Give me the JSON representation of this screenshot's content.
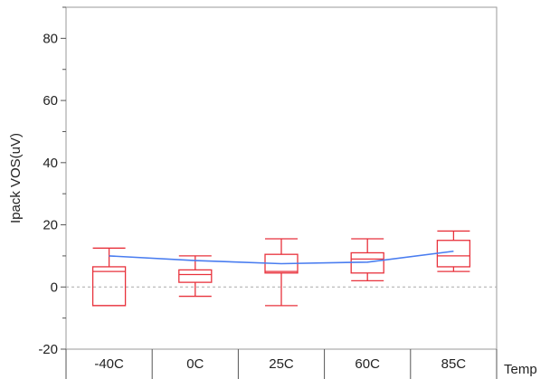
{
  "chart_data": {
    "type": "box",
    "categories": [
      "-40C",
      "0C",
      "25C",
      "60C",
      "85C"
    ],
    "xlabel": "Temp",
    "ylabel": "Ipack VOS(uV)",
    "ylim": [
      -20,
      90
    ],
    "yticks": [
      -20,
      0,
      20,
      40,
      60,
      80
    ],
    "grid": false,
    "reference_line": 0,
    "boxes": [
      {
        "category": "-40C",
        "whisker_low": -6,
        "q1": -6,
        "median": 5,
        "q3": 6.5,
        "whisker_high": 12.5
      },
      {
        "category": "0C",
        "whisker_low": -3,
        "q1": 1.5,
        "median": 4,
        "q3": 5.5,
        "whisker_high": 10
      },
      {
        "category": "25C",
        "whisker_low": -6,
        "q1": 4.5,
        "median": 5,
        "q3": 10.5,
        "whisker_high": 15.5
      },
      {
        "category": "60C",
        "whisker_low": 2,
        "q1": 4.5,
        "median": 9,
        "q3": 11,
        "whisker_high": 15.5
      },
      {
        "category": "85C",
        "whisker_low": 5,
        "q1": 6.5,
        "median": 10,
        "q3": 15,
        "whisker_high": 18
      }
    ],
    "mean_line": [
      10,
      8.5,
      7.5,
      8,
      11.5
    ],
    "colors": {
      "box": "#e8323c",
      "mean_line": "#4a7df0",
      "reference": "#aaaaaa",
      "frame": "#9a9a9a"
    }
  }
}
